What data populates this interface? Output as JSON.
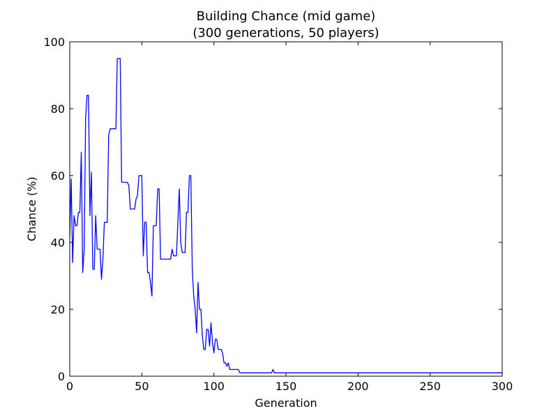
{
  "chart_data": {
    "type": "line",
    "title": "Building Chance (mid game)",
    "subtitle": "(300 generations, 50 players)",
    "xlabel": "Generation",
    "ylabel": "Chance (%)",
    "xlim": [
      0,
      300
    ],
    "ylim": [
      0,
      100
    ],
    "x_ticks": [
      0,
      50,
      100,
      150,
      200,
      250,
      300
    ],
    "y_ticks": [
      0,
      20,
      40,
      60,
      80,
      100
    ],
    "grid": false,
    "line_color": "#0000ff",
    "series": [
      {
        "x": [
          0,
          1,
          2,
          3,
          4,
          5,
          6,
          7,
          8,
          9,
          10,
          11,
          12,
          13,
          14,
          15,
          16,
          17,
          18,
          19,
          20,
          21,
          22,
          23,
          24,
          25,
          26,
          27,
          28,
          29,
          30,
          31,
          32,
          33,
          34,
          35,
          36,
          37,
          38,
          39,
          40,
          41,
          42,
          43,
          44,
          45,
          46,
          47,
          48,
          49,
          50,
          51,
          52,
          53,
          54,
          55,
          56,
          57,
          58,
          59,
          60,
          61,
          62,
          63,
          64,
          65,
          66,
          67,
          68,
          69,
          70,
          71,
          72,
          73,
          74,
          75,
          76,
          77,
          78,
          79,
          80,
          81,
          82,
          83,
          84,
          85,
          86,
          87,
          88,
          89,
          90,
          91,
          92,
          93,
          94,
          95,
          96,
          97,
          98,
          99,
          100,
          101,
          102,
          103,
          104,
          105,
          106,
          107,
          108,
          109,
          110,
          111,
          112,
          113,
          114,
          115,
          116,
          117,
          118,
          119,
          120,
          140,
          141,
          142,
          300
        ],
        "y": [
          42,
          59,
          34,
          48,
          45,
          45,
          49,
          49,
          67,
          31,
          38,
          77,
          84,
          84,
          48,
          61,
          32,
          32,
          48,
          38,
          38,
          38,
          29,
          35,
          46,
          46,
          46,
          72,
          74,
          74,
          74,
          74,
          74,
          95,
          95,
          95,
          58,
          58,
          58,
          58,
          58,
          57,
          50,
          50,
          50,
          50,
          53,
          54,
          60,
          60,
          60,
          36,
          46,
          46,
          31,
          31,
          28,
          24,
          45,
          45,
          45,
          56,
          56,
          35,
          35,
          35,
          35,
          35,
          35,
          35,
          35,
          38,
          36,
          36,
          36,
          46,
          56,
          40,
          37,
          37,
          37,
          49,
          49,
          60,
          60,
          32,
          24,
          20,
          13,
          28,
          20,
          20,
          12,
          8,
          8,
          14,
          14,
          9,
          16,
          10,
          7,
          11,
          11,
          8,
          8,
          8,
          7,
          4,
          4,
          3,
          4,
          2,
          2,
          2,
          2,
          2,
          2,
          2,
          1,
          1,
          1,
          1,
          2,
          1,
          1
        ]
      }
    ]
  }
}
